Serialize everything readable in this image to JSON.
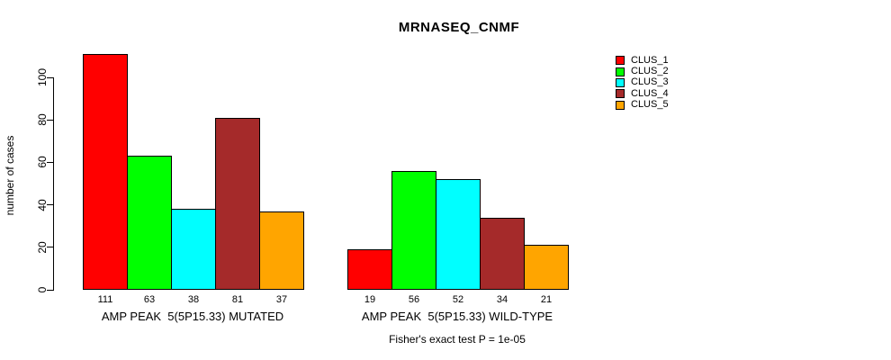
{
  "chart_data": {
    "type": "bar",
    "title": "MRNASEQ_CNMF",
    "ylabel": "number of cases",
    "ylim": [
      0,
      111
    ],
    "yticks": [
      0,
      20,
      40,
      60,
      80,
      100
    ],
    "grid": false,
    "legend_position": "top-right",
    "background_color": "#ffffff",
    "bar_border_color": "#000000",
    "categories": [
      "AMP PEAK  5(5P15.33) MUTATED",
      "AMP PEAK  5(5P15.33) WILD-TYPE"
    ],
    "series": [
      {
        "name": "CLUS_1",
        "color": "#ff0000",
        "values": [
          111,
          19
        ]
      },
      {
        "name": "CLUS_2",
        "color": "#00ff00",
        "values": [
          63,
          56
        ]
      },
      {
        "name": "CLUS_3",
        "color": "#00ffff",
        "values": [
          38,
          52
        ]
      },
      {
        "name": "CLUS_4",
        "color": "#a52a2a",
        "values": [
          81,
          34
        ]
      },
      {
        "name": "CLUS_5",
        "color": "#ffa500",
        "values": [
          37,
          21
        ]
      }
    ],
    "bar_value_labels_shown": true,
    "annotation": "Fisher's exact test P = 1e-05"
  }
}
